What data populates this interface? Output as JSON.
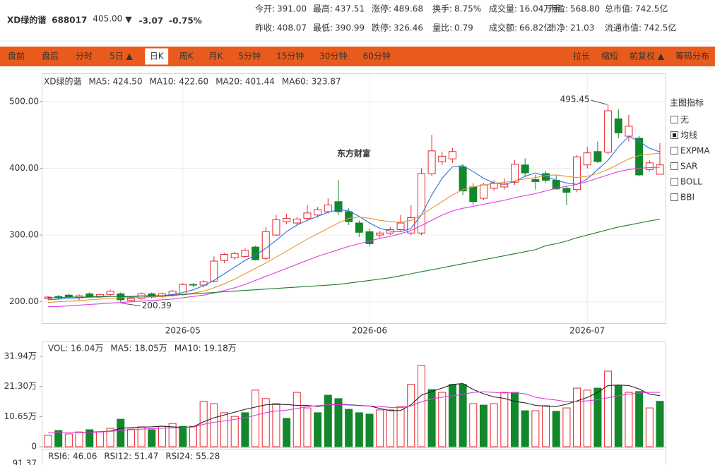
{
  "header": {
    "name": "XD绿的谐",
    "code": "688017",
    "price": "405.00",
    "arrow": "▼",
    "change": "-3.07",
    "change_pct": "-0.75%",
    "price_color": "#12872b",
    "stats": [
      [
        {
          "label": "今开:",
          "value": "391.00",
          "color": "#12872b"
        },
        {
          "label": "最高:",
          "value": "437.51",
          "color": "#e8262b"
        },
        {
          "label": "涨停:",
          "value": "489.68",
          "color": "#e8262b"
        },
        {
          "label": "换手:",
          "value": "8.75%",
          "color": "#333333"
        },
        {
          "label": "成交量:",
          "value": "16.04万手",
          "color": "#333333"
        },
        {
          "label": "市盈:",
          "value": "568.80",
          "color": "#333333"
        },
        {
          "label": "总市值:",
          "value": "742.5亿",
          "color": "#333333"
        }
      ],
      [
        {
          "label": "昨收:",
          "value": "408.07",
          "color": "#333333"
        },
        {
          "label": "最低:",
          "value": "390.99",
          "color": "#12872b"
        },
        {
          "label": "跌停:",
          "value": "326.46",
          "color": "#12872b"
        },
        {
          "label": "量比:",
          "value": "0.79",
          "color": "#333333"
        },
        {
          "label": "成交额:",
          "value": "66.82亿",
          "color": "#333333"
        },
        {
          "label": "市净:",
          "value": "21.03",
          "color": "#333333"
        },
        {
          "label": "流通市值:",
          "value": "742.5亿",
          "color": "#333333"
        }
      ]
    ]
  },
  "toolbar": {
    "left": [
      "盘前",
      "盘后",
      "分时",
      "5日 ▲",
      "日K",
      "周K",
      "月K",
      "5分钟",
      "15分钟",
      "30分钟",
      "60分钟"
    ],
    "active_index": 4,
    "right": [
      "拉长",
      "缩短",
      "前复权 ▲",
      "筹码分布"
    ]
  },
  "sidebar": {
    "title": "主图指标",
    "items": [
      {
        "label": "无",
        "checked": false
      },
      {
        "label": "均线",
        "checked": true
      },
      {
        "label": "EXPMA",
        "checked": false
      },
      {
        "label": "SAR",
        "checked": false
      },
      {
        "label": "BOLL",
        "checked": false
      },
      {
        "label": "BBI",
        "checked": false
      }
    ]
  },
  "rsi_panel": {
    "legend": [
      {
        "text": "RSI6: 46.06",
        "color": "#888888"
      },
      {
        "text": "RSI12: 51.47",
        "color": "#e7962f"
      },
      {
        "text": "RSI24: 55.28",
        "color": "#e03ce0"
      }
    ],
    "top_tick": "91.37"
  },
  "chart_data": [
    {
      "type": "candlestick",
      "title": "XD绿的谐",
      "watermark": "东方财富",
      "categories": [
        null,
        null,
        null,
        null,
        null,
        null,
        null,
        null,
        null,
        null,
        null,
        null,
        null,
        "2026-05",
        null,
        null,
        null,
        null,
        null,
        null,
        null,
        null,
        null,
        null,
        null,
        null,
        null,
        null,
        null,
        null,
        null,
        "2026-06",
        null,
        null,
        null,
        null,
        null,
        null,
        null,
        null,
        null,
        null,
        null,
        null,
        null,
        null,
        null,
        null,
        null,
        null,
        null,
        null,
        "2026-07",
        null,
        null,
        null,
        null,
        null,
        null,
        null
      ],
      "open": [
        205,
        208,
        210,
        206,
        212,
        208,
        211,
        212,
        202,
        205,
        212,
        208,
        210,
        211,
        226,
        225,
        231,
        262,
        266,
        268,
        282,
        265,
        300,
        320,
        318,
        325,
        330,
        335,
        350,
        335,
        318,
        305,
        300,
        303,
        308,
        303,
        303,
        392,
        410,
        414,
        402,
        372,
        355,
        370,
        372,
        379,
        405,
        383,
        392,
        382,
        370,
        368,
        405,
        425,
        424,
        474,
        448,
        445,
        398,
        391
      ],
      "high": [
        209,
        210,
        212,
        211,
        214,
        212,
        218,
        214,
        207,
        214,
        214,
        214,
        218,
        228,
        228,
        232,
        268,
        273,
        275,
        280,
        284,
        312,
        330,
        332,
        327,
        345,
        342,
        355,
        382,
        340,
        322,
        310,
        306,
        312,
        330,
        345,
        400,
        450,
        425,
        430,
        406,
        378,
        378,
        382,
        385,
        412,
        415,
        390,
        396,
        390,
        374,
        420,
        432,
        440,
        495.45,
        488,
        480,
        448,
        412,
        437.51
      ],
      "low": [
        203,
        204,
        206,
        202,
        207,
        206,
        209,
        198,
        200.39,
        203,
        205,
        206,
        208,
        209,
        222,
        222,
        229,
        258,
        263,
        266,
        262,
        262,
        298,
        316,
        314,
        322,
        326,
        332,
        330,
        315,
        297,
        283,
        296,
        300,
        305,
        300,
        300,
        388,
        405,
        408,
        360,
        345,
        352,
        366,
        368,
        375,
        388,
        368,
        378,
        368,
        345,
        364,
        400,
        408,
        420,
        445,
        440,
        388,
        395,
        390.99
      ],
      "close": [
        207,
        206,
        207,
        209,
        208,
        211,
        216,
        203,
        205,
        212,
        207,
        212,
        216,
        226,
        225,
        230,
        261,
        271,
        272,
        277,
        263,
        305,
        323,
        325,
        324,
        333,
        338,
        345,
        335,
        320,
        304,
        287,
        303,
        308,
        318,
        326,
        392,
        426,
        418,
        425,
        366,
        350,
        375,
        378,
        376,
        406,
        393,
        380,
        382,
        369,
        364,
        417,
        423,
        410,
        486,
        453,
        463,
        390,
        408.07,
        405
      ],
      "up_color": "#e8262b",
      "down_color": "#12872b",
      "high_label": "495.45",
      "low_label": "200.39",
      "series": [
        {
          "name": "MA5: 424.50",
          "color": "#2f6fe0",
          "values": [
            203,
            204,
            205,
            206,
            207,
            207,
            208,
            208,
            207,
            207,
            208,
            209,
            211,
            214,
            218,
            224,
            232,
            242,
            252,
            262,
            270,
            280,
            292,
            305,
            315,
            322,
            328,
            334,
            338,
            336,
            328,
            318,
            310,
            306,
            305,
            310,
            330,
            360,
            385,
            402,
            404,
            395,
            385,
            378,
            376,
            380,
            388,
            393,
            388,
            382,
            378,
            376,
            384,
            398,
            412,
            432,
            448,
            440,
            430,
            424.5
          ]
        },
        {
          "name": "MA10: 422.60",
          "color": "#e7962f",
          "values": [
            199,
            200,
            201,
            202,
            203,
            204,
            205,
            206,
            206,
            207,
            207,
            208,
            209,
            211,
            213,
            216,
            221,
            227,
            234,
            242,
            250,
            258,
            267,
            276,
            285,
            294,
            302,
            310,
            318,
            325,
            327,
            325,
            322,
            320,
            319,
            322,
            330,
            340,
            350,
            360,
            368,
            372,
            375,
            377,
            379,
            381,
            384,
            386,
            389,
            390,
            388,
            386,
            388,
            392,
            398,
            406,
            414,
            419,
            421,
            422.6
          ]
        },
        {
          "name": "MA20: 401.44",
          "color": "#e03ce0",
          "values": [
            193,
            193,
            194,
            195,
            196,
            197,
            198,
            199,
            200,
            201,
            202,
            203,
            204,
            206,
            208,
            210,
            213,
            217,
            221,
            226,
            232,
            238,
            244,
            250,
            256,
            262,
            268,
            273,
            278,
            283,
            287,
            291,
            295,
            298,
            302,
            307,
            314,
            322,
            330,
            336,
            340,
            343,
            346,
            349,
            352,
            356,
            359,
            362,
            366,
            370,
            373,
            376,
            380,
            385,
            390,
            395,
            398,
            400,
            401,
            401.44
          ]
        },
        {
          "name": "MA60: 323.87",
          "color": "#1d7a2a",
          "values": [
            206,
            206,
            207,
            207,
            207,
            208,
            208,
            208,
            208,
            209,
            209,
            209,
            210,
            211,
            212,
            213,
            214,
            215,
            216,
            217,
            218,
            219,
            220,
            221,
            222,
            223,
            224,
            225,
            226,
            228,
            230,
            232,
            234,
            236,
            239,
            242,
            245,
            248,
            251,
            254,
            257,
            260,
            263,
            266,
            269,
            272,
            275,
            278,
            284,
            287,
            291,
            296,
            300,
            304,
            308,
            312,
            315,
            318,
            321,
            323.87
          ]
        }
      ],
      "ylim": [
        168,
        541
      ],
      "yticks": [
        {
          "value": 200,
          "label": "200.00"
        },
        {
          "value": 300,
          "label": "300.00"
        },
        {
          "value": 400,
          "label": "400.00"
        },
        {
          "value": 500,
          "label": "500.00"
        }
      ],
      "grid": true
    },
    {
      "type": "bar",
      "series": [
        {
          "name": "VOL: 16.04万",
          "legend_color": "#d63ad6",
          "color": "#e8262b",
          "down_color": "#12872b",
          "rising": [
            true,
            false,
            true,
            true,
            false,
            true,
            true,
            false,
            true,
            true,
            false,
            true,
            true,
            false,
            true,
            true,
            true,
            true,
            true,
            false,
            true,
            true,
            true,
            false,
            true,
            true,
            false,
            false,
            false,
            false,
            false,
            false,
            true,
            true,
            true,
            true,
            true,
            false,
            true,
            false,
            false,
            true,
            false,
            true,
            true,
            false,
            false,
            true,
            true,
            false,
            true,
            true,
            true,
            false,
            true,
            false,
            true,
            false,
            true,
            false
          ],
          "values": [
            4,
            5.7,
            4.5,
            5.2,
            6,
            5.2,
            6.5,
            9.7,
            6.2,
            7,
            6,
            7.2,
            8.2,
            7.2,
            7.2,
            16,
            15.2,
            12,
            10.7,
            12,
            20,
            17,
            15.2,
            10,
            19.2,
            13.7,
            12,
            18.2,
            17,
            13.2,
            12,
            11.5,
            13,
            13,
            14.2,
            22,
            28.7,
            20.2,
            19.2,
            22,
            22,
            15.2,
            14.7,
            15.2,
            19.2,
            19.2,
            12.7,
            12.7,
            14.5,
            12.5,
            13.7,
            20.7,
            20,
            20.7,
            26.7,
            21.7,
            19.2,
            19.5,
            13.7,
            16.04
          ]
        },
        {
          "name": "MA5: 18.05万",
          "color": "#222222",
          "values": [
            5,
            5,
            5,
            5,
            5.1,
            5.3,
            5.5,
            6.5,
            6.7,
            6.9,
            7,
            7.2,
            7,
            6.8,
            7,
            8.8,
            10.2,
            11.2,
            12.2,
            13.2,
            14,
            14.8,
            15,
            14.9,
            14.6,
            14.6,
            14.2,
            14.8,
            15.1,
            14.8,
            14.6,
            14.4,
            13.5,
            12.7,
            12.8,
            14.8,
            18.2,
            19.5,
            20.7,
            22,
            22.3,
            20.2,
            18.7,
            17.6,
            17.1,
            16,
            15.5,
            14.6,
            14.3,
            14.2,
            15,
            16.2,
            17.4,
            19.2,
            21.6,
            21.8,
            21.6,
            20.4,
            18.6,
            18.05
          ]
        },
        {
          "name": "MA10: 19.18万",
          "color": "#e03ce0",
          "values": [
            5,
            5,
            5,
            5,
            5,
            5.2,
            5.4,
            5.8,
            6,
            6.2,
            6.4,
            6.5,
            6.6,
            6.7,
            6.9,
            7.9,
            8.6,
            9.1,
            9.6,
            10.2,
            11.1,
            12,
            12.6,
            12.9,
            13.5,
            14.2,
            14.5,
            14.8,
            14.9,
            14.7,
            14.5,
            14.4,
            14.2,
            13.9,
            13.8,
            14.4,
            15.9,
            16.9,
            17.5,
            18,
            18.5,
            19.2,
            19.4,
            19.2,
            19,
            19.1,
            18.7,
            17.5,
            16.9,
            16.5,
            15.9,
            16,
            16.2,
            16.6,
            17.3,
            18,
            18.6,
            19,
            19.2,
            19.18
          ]
        }
      ],
      "ylim": [
        0,
        36.93
      ],
      "yticks": [
        0,
        {
          "value": 10.65,
          "label": "10.65万"
        },
        {
          "value": 21.3,
          "label": "21.30万"
        },
        {
          "value": 31.94,
          "label": "31.94万"
        }
      ],
      "grid": false
    }
  ]
}
